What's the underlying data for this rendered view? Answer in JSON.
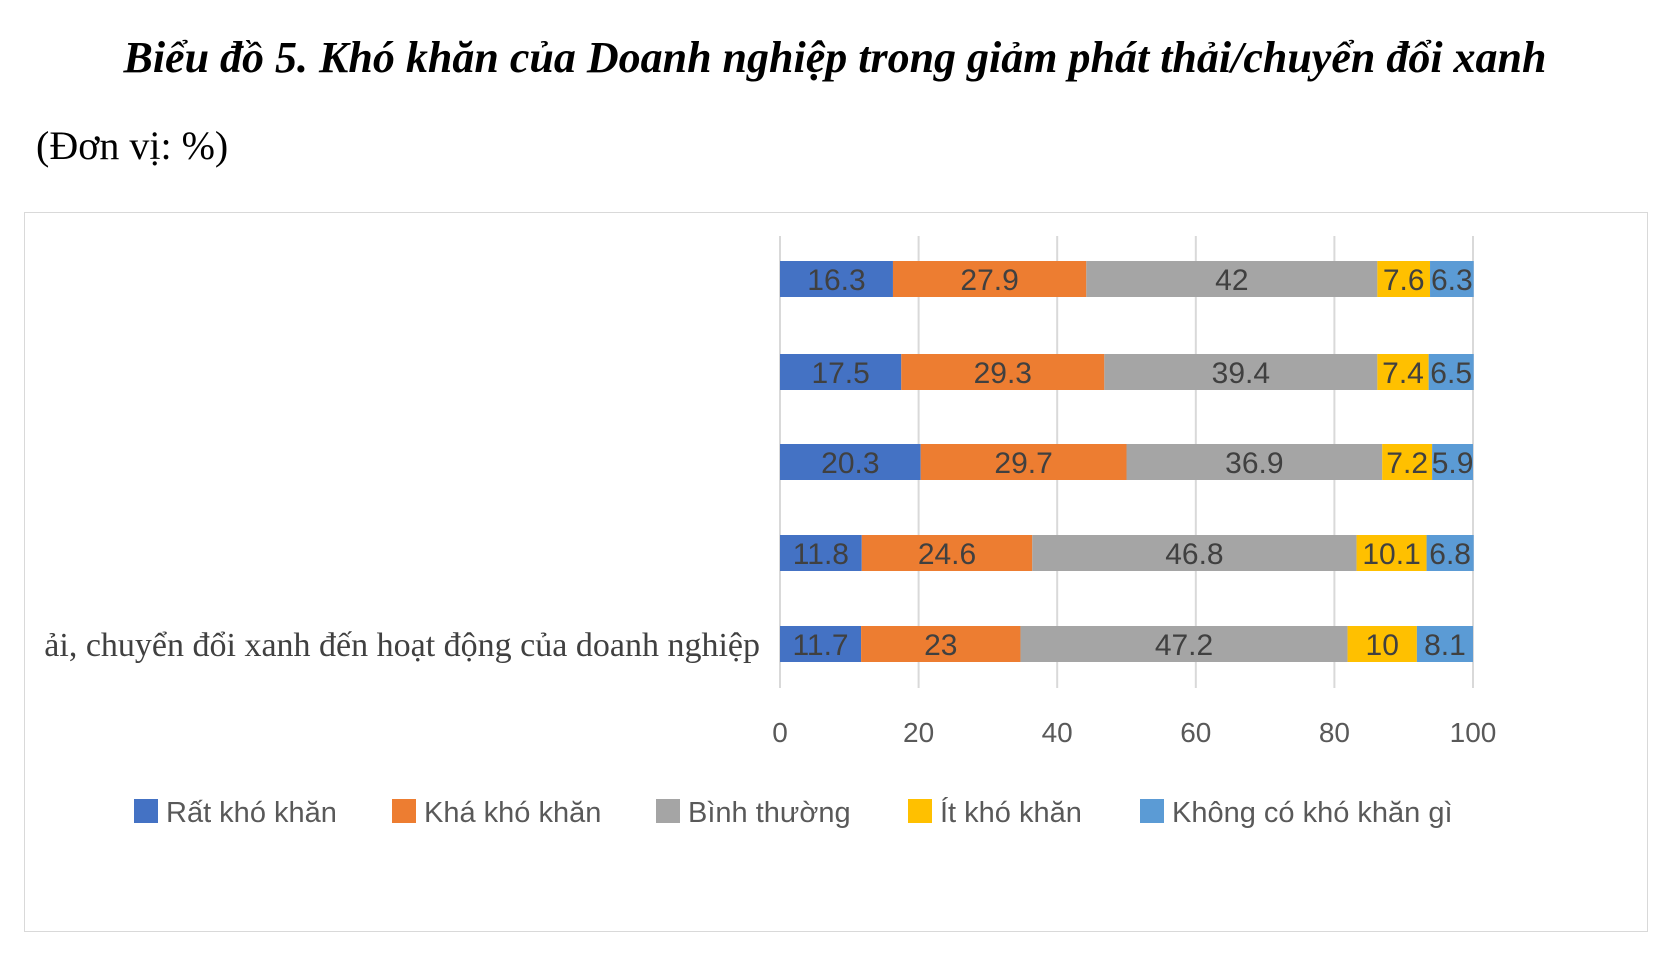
{
  "title": "Biểu đồ 5. Khó khăn của Doanh nghiệp trong giảm phát thải/chuyển đổi xanh",
  "unit_label": "(Đơn vị: %)",
  "chart_data": {
    "type": "bar",
    "orientation": "horizontal",
    "stacked": true,
    "categories": [
      "",
      "",
      "",
      "",
      "ải, chuyển đổi xanh đến hoạt động của doanh nghiệp"
    ],
    "series": [
      {
        "name": "Rất khó khăn",
        "color": "#4472c4",
        "values": [
          16.3,
          17.5,
          20.3,
          11.8,
          11.7
        ]
      },
      {
        "name": "Khá khó khăn",
        "color": "#ed7d31",
        "values": [
          27.9,
          29.3,
          29.7,
          24.6,
          23
        ]
      },
      {
        "name": "Bình thường",
        "color": "#a5a5a5",
        "values": [
          42,
          39.4,
          36.9,
          46.8,
          47.2
        ]
      },
      {
        "name": "Ít khó khăn",
        "color": "#ffc000",
        "values": [
          7.6,
          7.4,
          7.2,
          10.1,
          10
        ]
      },
      {
        "name": "Không có khó khăn gì",
        "color": "#5b9bd5",
        "values": [
          6.3,
          6.5,
          5.9,
          6.8,
          8.1
        ]
      }
    ],
    "xlim": [
      0,
      100
    ],
    "xticks": [
      0,
      20,
      40,
      60,
      80,
      100
    ],
    "grid": true,
    "legend_position": "bottom"
  }
}
